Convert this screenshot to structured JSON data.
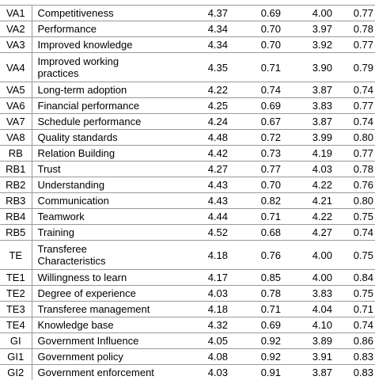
{
  "table": {
    "rows": [
      [
        "VA1",
        "Competitiveness",
        "4.37",
        "0.69",
        "4.00",
        "0.77"
      ],
      [
        "VA2",
        "Performance",
        "4.34",
        "0.70",
        "3.97",
        "0.78"
      ],
      [
        "VA3",
        "Improved knowledge",
        "4.34",
        "0.70",
        "3.92",
        "0.77"
      ],
      [
        "VA4",
        "Improved working practices",
        "4.35",
        "0.71",
        "3.90",
        "0.79"
      ],
      [
        "VA5",
        "Long-term adoption",
        "4.22",
        "0.74",
        "3.87",
        "0.74"
      ],
      [
        "VA6",
        "Financial performance",
        "4.25",
        "0.69",
        "3.83",
        "0.77"
      ],
      [
        "VA7",
        "Schedule performance",
        "4.24",
        "0.67",
        "3.87",
        "0.74"
      ],
      [
        "VA8",
        "Quality standards",
        "4.48",
        "0.72",
        "3.99",
        "0.80"
      ],
      [
        "RB",
        "Relation Building",
        "4.42",
        "0.73",
        "4.19",
        "0.77"
      ],
      [
        "RB1",
        "Trust",
        "4.27",
        "0.77",
        "4.03",
        "0.78"
      ],
      [
        "RB2",
        "Understanding",
        "4.43",
        "0.70",
        "4.22",
        "0.76"
      ],
      [
        "RB3",
        "Communication",
        "4.43",
        "0.82",
        "4.21",
        "0.80"
      ],
      [
        "RB4",
        "Teamwork",
        "4.44",
        "0.71",
        "4.22",
        "0.75"
      ],
      [
        "RB5",
        "Training",
        "4.52",
        "0.68",
        "4.27",
        "0.74"
      ],
      [
        "TE",
        "Transferee Characteristics",
        "4.18",
        "0.76",
        "4.00",
        "0.75"
      ],
      [
        "TE1",
        "Willingness to learn",
        "4.17",
        "0.85",
        "4.00",
        "0.84"
      ],
      [
        "TE2",
        "Degree of experience",
        "4.03",
        "0.78",
        "3.83",
        "0.75"
      ],
      [
        "TE3",
        "Transferee management",
        "4.18",
        "0.71",
        "4.04",
        "0.71"
      ],
      [
        "TE4",
        "Knowledge base",
        "4.32",
        "0.69",
        "4.10",
        "0.74"
      ],
      [
        "GI",
        "Government Influence",
        "4.05",
        "0.92",
        "3.89",
        "0.86"
      ],
      [
        "GI1",
        "Government policy",
        "4.08",
        "0.92",
        "3.91",
        "0.83"
      ],
      [
        "GI2",
        "Government enforcement",
        "4.03",
        "0.91",
        "3.87",
        "0.83"
      ]
    ]
  }
}
